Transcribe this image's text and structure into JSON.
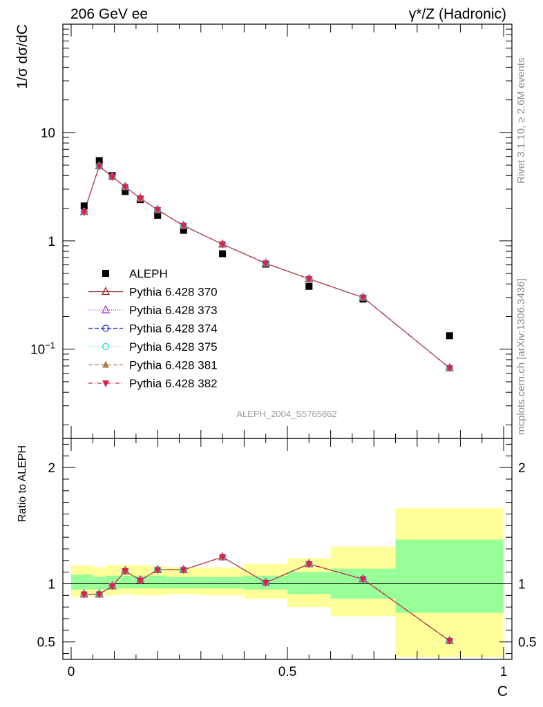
{
  "header": {
    "left_title": "206 GeV ee",
    "right_title": "γ*/Z (Hadronic)"
  },
  "side": {
    "rivet": "Rivet 3.1.10, ≥ 2.6M events",
    "site": "mcplots.cern.ch [arXiv:1306.3436]"
  },
  "chart_data": [
    {
      "type": "line",
      "panel": "main",
      "ylabel": "1/σ dσ/dC",
      "yscale": "log",
      "xlim": [
        0,
        1
      ],
      "ylim": [
        0.015,
        100
      ],
      "ytick_labels": [
        "10",
        "1",
        "10^-1"
      ],
      "analysis_label": "ALEPH_2004_S5765862",
      "x": [
        0.03,
        0.065,
        0.095,
        0.125,
        0.16,
        0.2,
        0.26,
        0.35,
        0.45,
        0.55,
        0.675,
        0.875
      ],
      "series": [
        {
          "name": "ALEPH",
          "marker": "square",
          "color": "#000000",
          "values": [
            2.1,
            5.5,
            4.0,
            2.85,
            2.4,
            1.72,
            1.25,
            0.76,
            0.61,
            0.38,
            0.29,
            0.133
          ]
        },
        {
          "name": "Pythia 6.428 370",
          "marker": "triangle-open",
          "color": "#8b1a1a",
          "dash": "",
          "values": [
            1.85,
            4.9,
            3.9,
            3.15,
            2.47,
            1.93,
            1.38,
            0.93,
            0.62,
            0.445,
            0.3,
            0.067
          ]
        },
        {
          "name": "Pythia 6.428 373",
          "marker": "triangle-open",
          "color": "#9a2ed0",
          "dash": "1,2",
          "values": [
            1.85,
            4.9,
            3.9,
            3.15,
            2.47,
            1.93,
            1.38,
            0.93,
            0.62,
            0.445,
            0.3,
            0.067
          ]
        },
        {
          "name": "Pythia 6.428 374",
          "marker": "circle-open",
          "color": "#2a2ae0",
          "dash": "6,3",
          "values": [
            1.85,
            4.9,
            3.9,
            3.15,
            2.47,
            1.93,
            1.38,
            0.93,
            0.62,
            0.445,
            0.3,
            0.067
          ]
        },
        {
          "name": "Pythia 6.428 375",
          "marker": "circle-open",
          "color": "#20d8c8",
          "dash": "1,2",
          "values": [
            1.85,
            4.9,
            3.9,
            3.15,
            2.47,
            1.93,
            1.38,
            0.93,
            0.62,
            0.445,
            0.3,
            0.067
          ]
        },
        {
          "name": "Pythia 6.428 381",
          "marker": "triangle-filled",
          "color": "#b07a48",
          "dash": "6,3",
          "values": [
            1.85,
            4.9,
            3.9,
            3.15,
            2.47,
            1.93,
            1.38,
            0.93,
            0.62,
            0.445,
            0.3,
            0.067
          ]
        },
        {
          "name": "Pythia 6.428 382",
          "marker": "triangle-down-filled",
          "color": "#e0204a",
          "dash": "6,3,1,3",
          "values": [
            1.85,
            4.9,
            3.9,
            3.15,
            2.47,
            1.93,
            1.38,
            0.93,
            0.62,
            0.445,
            0.3,
            0.067
          ]
        }
      ]
    },
    {
      "type": "line",
      "panel": "ratio",
      "xlabel": "C",
      "ylabel": "Ratio to ALEPH",
      "xlim": [
        0,
        1
      ],
      "ylim": [
        0.35,
        2.25
      ],
      "xtick_labels": [
        "0",
        "0.5",
        "1"
      ],
      "ytick_labels": [
        "0.5",
        "1",
        "2"
      ],
      "x": [
        0.03,
        0.065,
        0.095,
        0.125,
        0.16,
        0.2,
        0.26,
        0.35,
        0.45,
        0.55,
        0.675,
        0.875
      ],
      "ratio_values": [
        0.91,
        0.91,
        0.98,
        1.11,
        1.03,
        1.12,
        1.12,
        1.23,
        1.01,
        1.17,
        1.04,
        0.51
      ],
      "bands": {
        "bins": [
          [
            0.0,
            0.05
          ],
          [
            0.05,
            0.08
          ],
          [
            0.08,
            0.11
          ],
          [
            0.11,
            0.14
          ],
          [
            0.14,
            0.18
          ],
          [
            0.18,
            0.22
          ],
          [
            0.22,
            0.3
          ],
          [
            0.3,
            0.4
          ],
          [
            0.4,
            0.5
          ],
          [
            0.5,
            0.6
          ],
          [
            0.6,
            0.75
          ],
          [
            0.75,
            1.0
          ]
        ],
        "stat_low": [
          0.95,
          0.95,
          0.95,
          0.96,
          0.96,
          0.96,
          0.96,
          0.96,
          0.95,
          0.91,
          0.87,
          0.75
        ],
        "stat_high": [
          1.08,
          1.06,
          1.07,
          1.07,
          1.07,
          1.07,
          1.06,
          1.06,
          1.07,
          1.1,
          1.13,
          1.38
        ],
        "total_low": [
          0.89,
          0.89,
          0.9,
          0.91,
          0.9,
          0.9,
          0.91,
          0.9,
          0.87,
          0.8,
          0.72,
          0.37
        ],
        "total_high": [
          1.16,
          1.14,
          1.16,
          1.16,
          1.16,
          1.15,
          1.14,
          1.14,
          1.17,
          1.22,
          1.32,
          1.65
        ],
        "stat_color": "#99ff99",
        "total_color": "#ffff99"
      }
    }
  ]
}
